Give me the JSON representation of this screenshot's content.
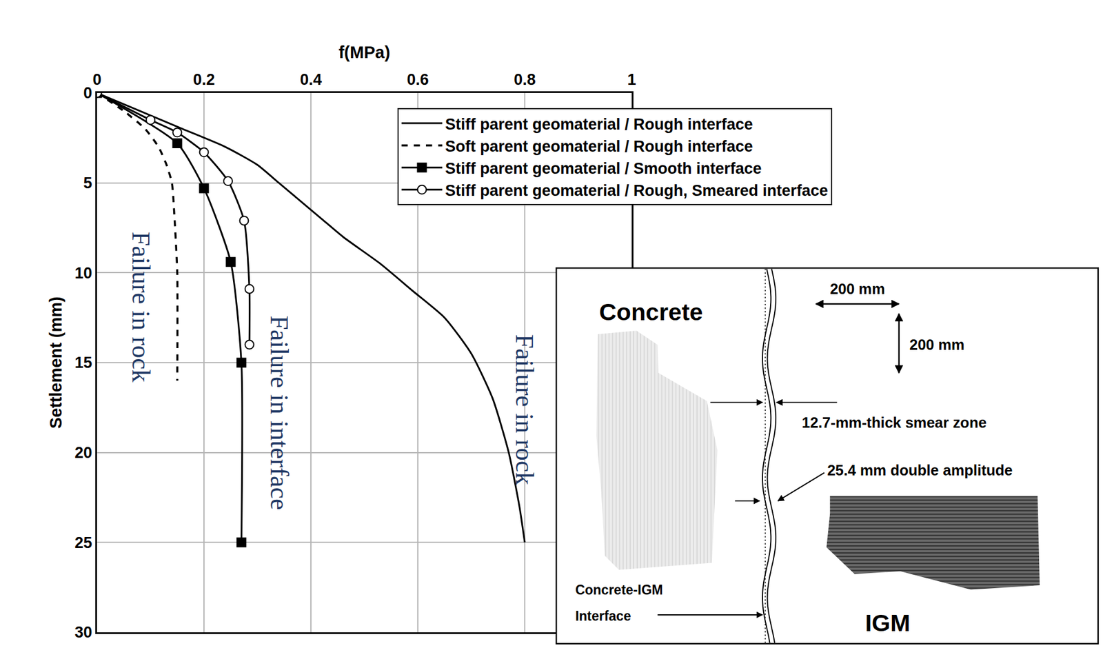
{
  "chart_data": {
    "type": "line",
    "x_label": "f(MPa)",
    "y_label": "Settlement (mm)",
    "xlim": [
      0,
      1
    ],
    "xticks": [
      0,
      0.2,
      0.4,
      0.6,
      0.8,
      1
    ],
    "ylim": [
      30,
      0
    ],
    "yticks": [
      0,
      5,
      10,
      15,
      20,
      25,
      30
    ],
    "grid": true,
    "legend": "upper right",
    "series": [
      {
        "name": "Stiff parent geomaterial / Rough interface",
        "color": "#000000",
        "line_style": "solid",
        "marker": "none",
        "x": [
          0,
          0.08,
          0.16,
          0.24,
          0.3,
          0.34,
          0.38,
          0.42,
          0.46,
          0.53,
          0.59,
          0.65,
          0.7,
          0.74,
          0.77,
          0.79,
          0.8
        ],
        "y": [
          0,
          1,
          2,
          3,
          4,
          5,
          6,
          7,
          8,
          9.5,
          11,
          12.5,
          14.5,
          17,
          20,
          23,
          25
        ]
      },
      {
        "name": "Soft parent geomaterial / Rough interface",
        "color": "#000000",
        "line_style": "dash",
        "marker": "none",
        "x": [
          0,
          0.05,
          0.09,
          0.115,
          0.13,
          0.14,
          0.145,
          0.15,
          0.15
        ],
        "y": [
          0,
          1,
          2,
          3,
          4,
          5,
          7,
          10,
          16
        ]
      },
      {
        "name": "Stiff parent geomaterial / Smooth interface",
        "color": "#000000",
        "line_style": "solid",
        "marker": "square",
        "x": [
          0,
          0.15,
          0.2,
          0.25,
          0.27,
          0.27
        ],
        "y": [
          0,
          2.8,
          5.3,
          9.4,
          15,
          25
        ]
      },
      {
        "name": "Stiff parent geomaterial / Rough, Smeared interface",
        "color": "#000000",
        "line_style": "solid",
        "marker": "circle-open",
        "x": [
          0,
          0.1,
          0.15,
          0.2,
          0.245,
          0.275,
          0.285,
          0.285
        ],
        "y": [
          0,
          1.5,
          2.2,
          3.3,
          4.9,
          7.1,
          10.9,
          14
        ]
      }
    ],
    "annotations": [
      {
        "text": "Failure in rock"
      },
      {
        "text": "Failure in interface"
      },
      {
        "text": "Failure in rock"
      }
    ]
  },
  "diagram": {
    "concrete": "Concrete",
    "igm": "IGM",
    "width_label": "200 mm",
    "height_label": "200 mm",
    "smear_zone": "12.7-mm-thick smear zone",
    "amplitude": "25.4 mm double amplitude",
    "interface_label": [
      "Concrete-IGM",
      "Interface"
    ]
  }
}
